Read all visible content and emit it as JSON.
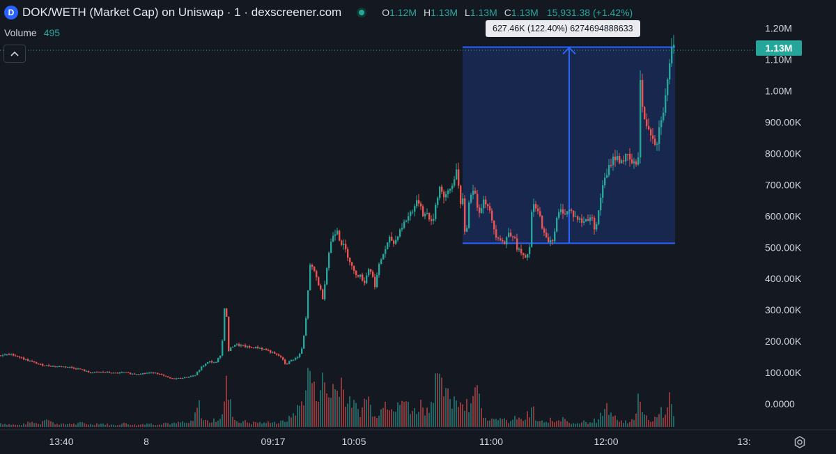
{
  "header": {
    "logo_letter": "D",
    "title": "DOK/WETH (Market Cap) on Uniswap · 1 · dexscreener.com",
    "ohlc": [
      {
        "key": "O",
        "value": "1.12M"
      },
      {
        "key": "H",
        "value": "1.13M"
      },
      {
        "key": "L",
        "value": "1.13M"
      },
      {
        "key": "C",
        "value": "1.13M"
      }
    ],
    "change": "15,931.38 (+1.42%)"
  },
  "volume_row": {
    "label": "Volume",
    "value": "495"
  },
  "collapse_icon": "chevron-up-icon",
  "measure": {
    "label": "627.46K (122.40%) 6274694888633",
    "from_value": 513000,
    "to_value": 1140000
  },
  "last_price": {
    "label": "1.13M",
    "value": 1130000
  },
  "colors": {
    "background": "#141821",
    "up": "#26a69a",
    "down": "#ef5350",
    "measure_box": "#2962ff",
    "text": "#d1d4dc"
  },
  "settings_icon": "gear-icon",
  "chart_data": {
    "type": "candlestick",
    "y_axis": {
      "min": 0,
      "max": 1200000,
      "ticks": [
        {
          "value": 1200000,
          "label": "1.20M"
        },
        {
          "value": 1100000,
          "label": "1.10M"
        },
        {
          "value": 1000000,
          "label": "1.00M"
        },
        {
          "value": 900000,
          "label": "900.00K"
        },
        {
          "value": 800000,
          "label": "800.00K"
        },
        {
          "value": 700000,
          "label": "700.00K"
        },
        {
          "value": 600000,
          "label": "600.00K"
        },
        {
          "value": 500000,
          "label": "500.00K"
        },
        {
          "value": 400000,
          "label": "400.00K"
        },
        {
          "value": 300000,
          "label": "300.00K"
        },
        {
          "value": 200000,
          "label": "200.00K"
        },
        {
          "value": 100000,
          "label": "100.00K"
        },
        {
          "value": 0,
          "label": "0.0000"
        }
      ]
    },
    "x_axis": {
      "labels": [
        "13:40",
        "8",
        "09:17",
        "10:05",
        "11:00",
        "12:00",
        "13:"
      ]
    },
    "price_path": [
      [
        0,
        155000
      ],
      [
        20,
        158000
      ],
      [
        40,
        140000
      ],
      [
        60,
        125000
      ],
      [
        80,
        120000
      ],
      [
        100,
        118000
      ],
      [
        118,
        110000
      ],
      [
        130,
        100000
      ],
      [
        150,
        102000
      ],
      [
        165,
        98000
      ],
      [
        180,
        100000
      ],
      [
        195,
        95000
      ],
      [
        210,
        98000
      ],
      [
        225,
        100000
      ],
      [
        238,
        88000
      ],
      [
        248,
        80000
      ],
      [
        260,
        82000
      ],
      [
        272,
        86000
      ],
      [
        282,
        92000
      ],
      [
        292,
        120000
      ],
      [
        302,
        135000
      ],
      [
        312,
        132000
      ],
      [
        320,
        165000
      ],
      [
        325,
        345000
      ],
      [
        330,
        170000
      ],
      [
        338,
        190000
      ],
      [
        350,
        185000
      ],
      [
        360,
        180000
      ],
      [
        372,
        180000
      ],
      [
        385,
        172000
      ],
      [
        395,
        160000
      ],
      [
        405,
        150000
      ],
      [
        412,
        125000
      ],
      [
        420,
        140000
      ],
      [
        430,
        150000
      ],
      [
        436,
        180000
      ],
      [
        442,
        290000
      ],
      [
        446,
        440000
      ],
      [
        452,
        430000
      ],
      [
        458,
        390000
      ],
      [
        465,
        340000
      ],
      [
        470,
        420000
      ],
      [
        475,
        500000
      ],
      [
        480,
        540000
      ],
      [
        486,
        560000
      ],
      [
        490,
        520000
      ],
      [
        496,
        500000
      ],
      [
        502,
        470000
      ],
      [
        510,
        420000
      ],
      [
        518,
        410000
      ],
      [
        525,
        390000
      ],
      [
        532,
        440000
      ],
      [
        540,
        380000
      ],
      [
        546,
        440000
      ],
      [
        550,
        470000
      ],
      [
        556,
        500000
      ],
      [
        562,
        530000
      ],
      [
        568,
        510000
      ],
      [
        574,
        550000
      ],
      [
        580,
        570000
      ],
      [
        588,
        600000
      ],
      [
        596,
        630000
      ],
      [
        604,
        650000
      ],
      [
        610,
        600000
      ],
      [
        616,
        610000
      ],
      [
        622,
        570000
      ],
      [
        628,
        650000
      ],
      [
        634,
        700000
      ],
      [
        640,
        650000
      ],
      [
        646,
        680000
      ],
      [
        652,
        700000
      ],
      [
        658,
        770000
      ],
      [
        662,
        620000
      ],
      [
        666,
        650000
      ],
      [
        670,
        520000
      ],
      [
        675,
        640000
      ],
      [
        680,
        700000
      ],
      [
        686,
        640000
      ],
      [
        690,
        620000
      ],
      [
        696,
        650000
      ],
      [
        702,
        640000
      ],
      [
        708,
        580000
      ],
      [
        714,
        540000
      ],
      [
        720,
        530000
      ],
      [
        726,
        510000
      ],
      [
        732,
        550000
      ],
      [
        738,
        540000
      ],
      [
        744,
        500000
      ],
      [
        750,
        480000
      ],
      [
        756,
        460000
      ],
      [
        762,
        500000
      ],
      [
        766,
        640000
      ],
      [
        772,
        620000
      ],
      [
        778,
        590000
      ],
      [
        784,
        530000
      ],
      [
        790,
        520000
      ],
      [
        796,
        530000
      ],
      [
        802,
        600000
      ],
      [
        808,
        620000
      ],
      [
        814,
        610000
      ],
      [
        820,
        620000
      ],
      [
        826,
        600000
      ],
      [
        832,
        590000
      ],
      [
        838,
        580000
      ],
      [
        844,
        590000
      ],
      [
        850,
        600000
      ],
      [
        856,
        560000
      ],
      [
        862,
        620000
      ],
      [
        866,
        700000
      ],
      [
        872,
        720000
      ],
      [
        878,
        770000
      ],
      [
        884,
        790000
      ],
      [
        890,
        780000
      ],
      [
        896,
        780000
      ],
      [
        902,
        790000
      ],
      [
        908,
        770000
      ],
      [
        914,
        760000
      ],
      [
        918,
        800000
      ],
      [
        921,
        1030000
      ],
      [
        926,
        900000
      ],
      [
        932,
        890000
      ],
      [
        938,
        860000
      ],
      [
        944,
        830000
      ],
      [
        948,
        880000
      ],
      [
        952,
        930000
      ],
      [
        956,
        960000
      ],
      [
        960,
        1030000
      ],
      [
        964,
        1120000
      ],
      [
        968,
        1130000
      ]
    ],
    "volume_path": [
      [
        0,
        6
      ],
      [
        8,
        5
      ],
      [
        16,
        4
      ],
      [
        24,
        3
      ],
      [
        32,
        4
      ],
      [
        40,
        7
      ],
      [
        48,
        8
      ],
      [
        56,
        4
      ],
      [
        64,
        18
      ],
      [
        70,
        10
      ],
      [
        76,
        6
      ],
      [
        84,
        5
      ],
      [
        92,
        4
      ],
      [
        100,
        6
      ],
      [
        108,
        4
      ],
      [
        116,
        7
      ],
      [
        124,
        5
      ],
      [
        132,
        4
      ],
      [
        140,
        6
      ],
      [
        148,
        5
      ],
      [
        156,
        4
      ],
      [
        164,
        3
      ],
      [
        172,
        5
      ],
      [
        180,
        6
      ],
      [
        188,
        4
      ],
      [
        196,
        3
      ],
      [
        204,
        5
      ],
      [
        212,
        6
      ],
      [
        220,
        4
      ],
      [
        228,
        5
      ],
      [
        236,
        7
      ],
      [
        244,
        5
      ],
      [
        252,
        6
      ],
      [
        260,
        8
      ],
      [
        268,
        6
      ],
      [
        276,
        9
      ],
      [
        284,
        40
      ],
      [
        290,
        12
      ],
      [
        296,
        10
      ],
      [
        302,
        8
      ],
      [
        308,
        12
      ],
      [
        314,
        14
      ],
      [
        320,
        30
      ],
      [
        324,
        70
      ],
      [
        328,
        45
      ],
      [
        332,
        28
      ],
      [
        336,
        12
      ],
      [
        342,
        8
      ],
      [
        348,
        10
      ],
      [
        354,
        8
      ],
      [
        360,
        6
      ],
      [
        366,
        8
      ],
      [
        372,
        7
      ],
      [
        378,
        6
      ],
      [
        384,
        8
      ],
      [
        390,
        10
      ],
      [
        396,
        6
      ],
      [
        402,
        8
      ],
      [
        408,
        10
      ],
      [
        414,
        14
      ],
      [
        420,
        22
      ],
      [
        426,
        30
      ],
      [
        432,
        40
      ],
      [
        436,
        55
      ],
      [
        440,
        80
      ],
      [
        444,
        98
      ],
      [
        448,
        70
      ],
      [
        452,
        50
      ],
      [
        456,
        62
      ],
      [
        460,
        72
      ],
      [
        464,
        78
      ],
      [
        468,
        58
      ],
      [
        472,
        48
      ],
      [
        476,
        72
      ],
      [
        480,
        60
      ],
      [
        484,
        62
      ],
      [
        488,
        95
      ],
      [
        492,
        58
      ],
      [
        496,
        45
      ],
      [
        500,
        38
      ],
      [
        504,
        42
      ],
      [
        508,
        35
      ],
      [
        512,
        30
      ],
      [
        516,
        25
      ],
      [
        520,
        32
      ],
      [
        524,
        55
      ],
      [
        528,
        48
      ],
      [
        532,
        28
      ],
      [
        536,
        25
      ],
      [
        540,
        22
      ],
      [
        544,
        18
      ],
      [
        548,
        40
      ],
      [
        552,
        60
      ],
      [
        556,
        32
      ],
      [
        560,
        45
      ],
      [
        564,
        30
      ],
      [
        568,
        25
      ],
      [
        572,
        40
      ],
      [
        576,
        45
      ],
      [
        580,
        32
      ],
      [
        584,
        48
      ],
      [
        588,
        30
      ],
      [
        592,
        28
      ],
      [
        596,
        25
      ],
      [
        600,
        35
      ],
      [
        604,
        40
      ],
      [
        608,
        30
      ],
      [
        612,
        28
      ],
      [
        616,
        38
      ],
      [
        620,
        50
      ],
      [
        624,
        95
      ],
      [
        628,
        70
      ],
      [
        632,
        65
      ],
      [
        636,
        60
      ],
      [
        640,
        48
      ],
      [
        644,
        55
      ],
      [
        648,
        40
      ],
      [
        652,
        52
      ],
      [
        656,
        48
      ],
      [
        660,
        45
      ],
      [
        664,
        35
      ],
      [
        668,
        48
      ],
      [
        672,
        30
      ],
      [
        676,
        55
      ],
      [
        680,
        40
      ],
      [
        684,
        95
      ],
      [
        688,
        32
      ],
      [
        692,
        25
      ],
      [
        696,
        18
      ],
      [
        700,
        15
      ],
      [
        704,
        12
      ],
      [
        708,
        16
      ],
      [
        712,
        20
      ],
      [
        716,
        14
      ],
      [
        720,
        10
      ],
      [
        724,
        12
      ],
      [
        728,
        8
      ],
      [
        732,
        10
      ],
      [
        736,
        12
      ],
      [
        740,
        16
      ],
      [
        744,
        14
      ],
      [
        748,
        10
      ],
      [
        752,
        12
      ],
      [
        756,
        20
      ],
      [
        760,
        18
      ],
      [
        764,
        35
      ],
      [
        768,
        12
      ],
      [
        772,
        8
      ],
      [
        776,
        10
      ],
      [
        780,
        6
      ],
      [
        784,
        8
      ],
      [
        788,
        12
      ],
      [
        792,
        10
      ],
      [
        796,
        8
      ],
      [
        800,
        14
      ],
      [
        804,
        12
      ],
      [
        808,
        22
      ],
      [
        812,
        8
      ],
      [
        816,
        10
      ],
      [
        820,
        6
      ],
      [
        824,
        8
      ],
      [
        828,
        5
      ],
      [
        832,
        6
      ],
      [
        836,
        8
      ],
      [
        840,
        10
      ],
      [
        844,
        6
      ],
      [
        848,
        8
      ],
      [
        852,
        12
      ],
      [
        856,
        6
      ],
      [
        860,
        18
      ],
      [
        864,
        20
      ],
      [
        868,
        28
      ],
      [
        872,
        32
      ],
      [
        876,
        18
      ],
      [
        880,
        22
      ],
      [
        884,
        10
      ],
      [
        888,
        12
      ],
      [
        892,
        8
      ],
      [
        896,
        10
      ],
      [
        900,
        6
      ],
      [
        904,
        8
      ],
      [
        908,
        14
      ],
      [
        912,
        20
      ],
      [
        916,
        88
      ],
      [
        920,
        28
      ],
      [
        924,
        20
      ],
      [
        928,
        15
      ],
      [
        932,
        12
      ],
      [
        936,
        10
      ],
      [
        940,
        18
      ],
      [
        944,
        22
      ],
      [
        948,
        30
      ],
      [
        952,
        16
      ],
      [
        956,
        15
      ],
      [
        960,
        62
      ],
      [
        964,
        28
      ],
      [
        968,
        10
      ]
    ]
  }
}
